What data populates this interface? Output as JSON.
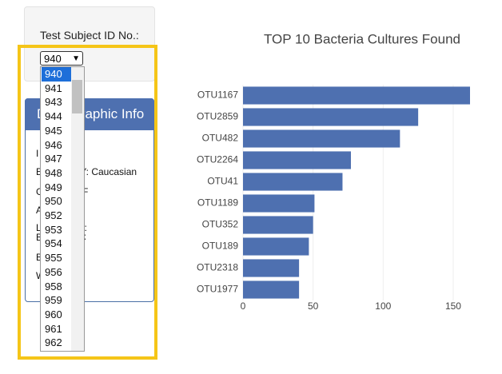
{
  "panel": {
    "label": "Test Subject ID No.:",
    "selected": "940",
    "options": [
      "940",
      "941",
      "943",
      "944",
      "945",
      "946",
      "947",
      "948",
      "949",
      "950",
      "952",
      "953",
      "954",
      "955",
      "956",
      "958",
      "959",
      "960",
      "961",
      "962"
    ]
  },
  "demographics": {
    "title": "Demographic Info",
    "lines": [
      "I",
      "ETHNICITY: Caucasian",
      "GENDER: F",
      "A",
      "LOCATION:",
      "BBTYPE: C",
      "B",
      "W"
    ]
  },
  "chart_data": {
    "type": "hbar",
    "title": "TOP 10 Bacteria Cultures Found",
    "categories": [
      "OTU1167",
      "OTU2859",
      "OTU482",
      "OTU2264",
      "OTU41",
      "OTU1189",
      "OTU352",
      "OTU189",
      "OTU2318",
      "OTU1977"
    ],
    "values": [
      162,
      125,
      112,
      77,
      71,
      51,
      50,
      47,
      40,
      40
    ],
    "color": "#4e70b0",
    "xlim": [
      0,
      162
    ],
    "xticks": [
      0,
      50,
      100,
      150
    ],
    "grid": true
  }
}
